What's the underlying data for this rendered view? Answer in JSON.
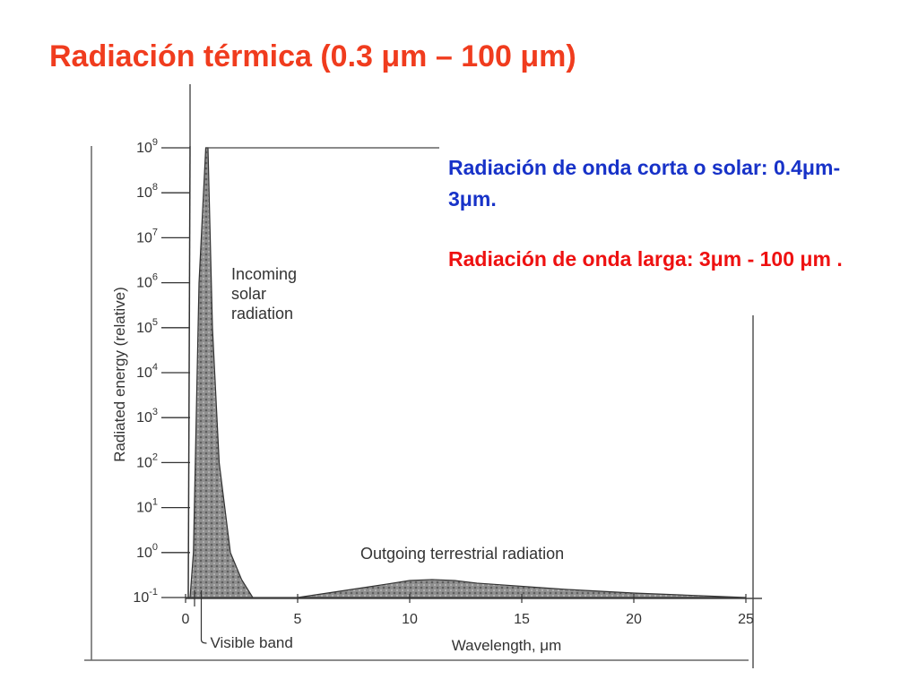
{
  "title": "Radiación térmica (0.3 μm – 100 μm)",
  "notes": {
    "short_wave_text": "Radiación de onda corta o solar: 0.4μm-3μm.",
    "short_wave_color": "#1732c8",
    "long_wave_text": "Radiación de onda larga: 3μm - 100 μm .",
    "long_wave_color": "#ee1111"
  },
  "chart_data": {
    "type": "area",
    "title": "",
    "xlabel": "Wavelength, μm",
    "ylabel": "Radiated energy (relative)",
    "xlim": [
      0,
      25
    ],
    "ylim": [
      -1,
      9
    ],
    "yscale": "log",
    "x_ticks": [
      "0",
      "5",
      "10",
      "15",
      "20",
      "25"
    ],
    "y_ticks": [
      "10-1",
      "100",
      "101",
      "102",
      "103",
      "104",
      "105",
      "106",
      "107",
      "108",
      "109"
    ],
    "annotations": [
      "Incoming solar radiation",
      "Outgoing terrestrial radiation",
      "Visible band"
    ],
    "series": [
      {
        "name": "Incoming solar radiation",
        "x": [
          0.2,
          0.35,
          0.6,
          0.9,
          1.0,
          1.2,
          1.5,
          2.0,
          2.5,
          3.0
        ],
        "log10_y": [
          -1,
          0,
          6,
          9,
          9,
          5,
          2,
          0,
          -0.6,
          -1
        ]
      },
      {
        "name": "Outgoing terrestrial radiation",
        "x": [
          3.0,
          5,
          7,
          9,
          10,
          11,
          12,
          13,
          15,
          17,
          20,
          25
        ],
        "log10_y": [
          -1,
          -1,
          -0.85,
          -0.7,
          -0.62,
          -0.6,
          -0.62,
          -0.68,
          -0.75,
          -0.82,
          -0.9,
          -1
        ]
      }
    ],
    "visible_band": [
      0.4,
      0.7
    ]
  }
}
